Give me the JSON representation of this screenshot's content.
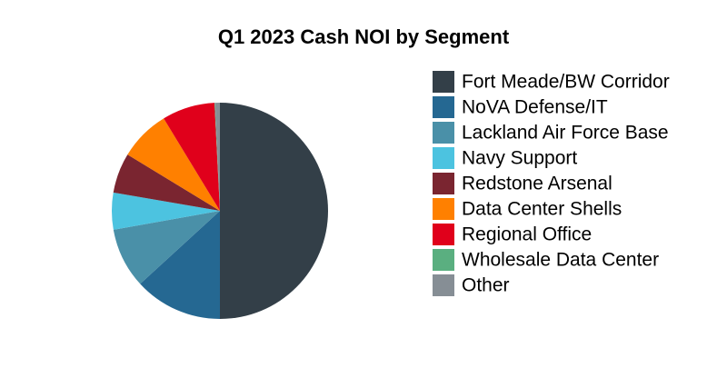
{
  "chart_data": {
    "type": "pie",
    "title": "Q1 2023 Cash NOI by Segment",
    "categories": [
      "Fort Meade/BW Corridor",
      "NoVA Defense/IT",
      "Lackland Air Force Base",
      "Navy Support",
      "Redstone Arsenal",
      "Data Center Shells",
      "Regional Office",
      "Wholesale Data Center",
      "Other"
    ],
    "values": [
      50.0,
      13.2,
      9.0,
      5.5,
      6.0,
      7.6,
      7.9,
      0.1,
      0.7
    ],
    "colors": [
      "#333f48",
      "#256892",
      "#4a90a8",
      "#4cc3e0",
      "#7a2530",
      "#ff8000",
      "#e0001b",
      "#5aaf80",
      "#868e95"
    ],
    "legend": "right"
  }
}
